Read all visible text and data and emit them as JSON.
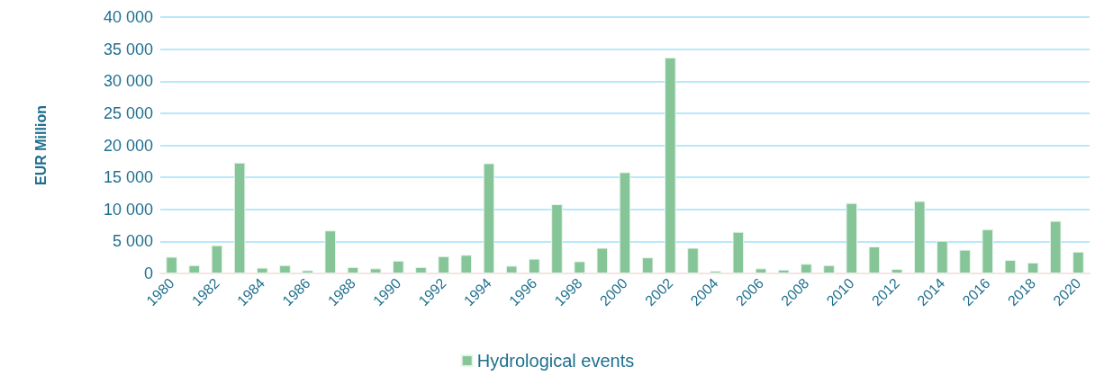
{
  "chart_data": {
    "type": "bar",
    "ylabel": "EUR Million",
    "categories": [
      "1980",
      null,
      "1982",
      null,
      "1984",
      null,
      "1986",
      null,
      "1988",
      null,
      "1990",
      null,
      "1992",
      null,
      "1994",
      null,
      "1996",
      null,
      "1998",
      null,
      "2000",
      null,
      "2002",
      null,
      "2004",
      null,
      "2006",
      null,
      "2008",
      null,
      "2010",
      null,
      "2012",
      null,
      "2014",
      null,
      "2016",
      null,
      "2018",
      null,
      "2020"
    ],
    "series": [
      {
        "name": "Hydrological events",
        "color": "#86c597",
        "values": [
          2600,
          1300,
          4400,
          17300,
          900,
          1300,
          500,
          6700,
          1000,
          800,
          2000,
          1000,
          2700,
          2900,
          17200,
          1200,
          2300,
          10800,
          1900,
          4000,
          15800,
          2500,
          33700,
          4000,
          400,
          6500,
          800,
          600,
          1500,
          1300,
          11000,
          4200,
          700,
          11300,
          5100,
          3700,
          6900,
          2100,
          1700,
          8200,
          3400
        ]
      }
    ],
    "ylim": [
      0,
      40000
    ],
    "yticks": [
      0,
      {
        "value": 5000,
        "label": "5 000"
      },
      {
        "value": 10000,
        "label": "10 000"
      },
      {
        "value": 15000,
        "label": "15 000"
      },
      {
        "value": 20000,
        "label": "20 000"
      },
      {
        "value": 25000,
        "label": "25 000"
      },
      {
        "value": 30000,
        "label": "30 000"
      },
      {
        "value": 35000,
        "label": "35 000"
      },
      {
        "value": 40000,
        "label": "40 000"
      }
    ],
    "grid": "y",
    "legend": "bottom"
  }
}
